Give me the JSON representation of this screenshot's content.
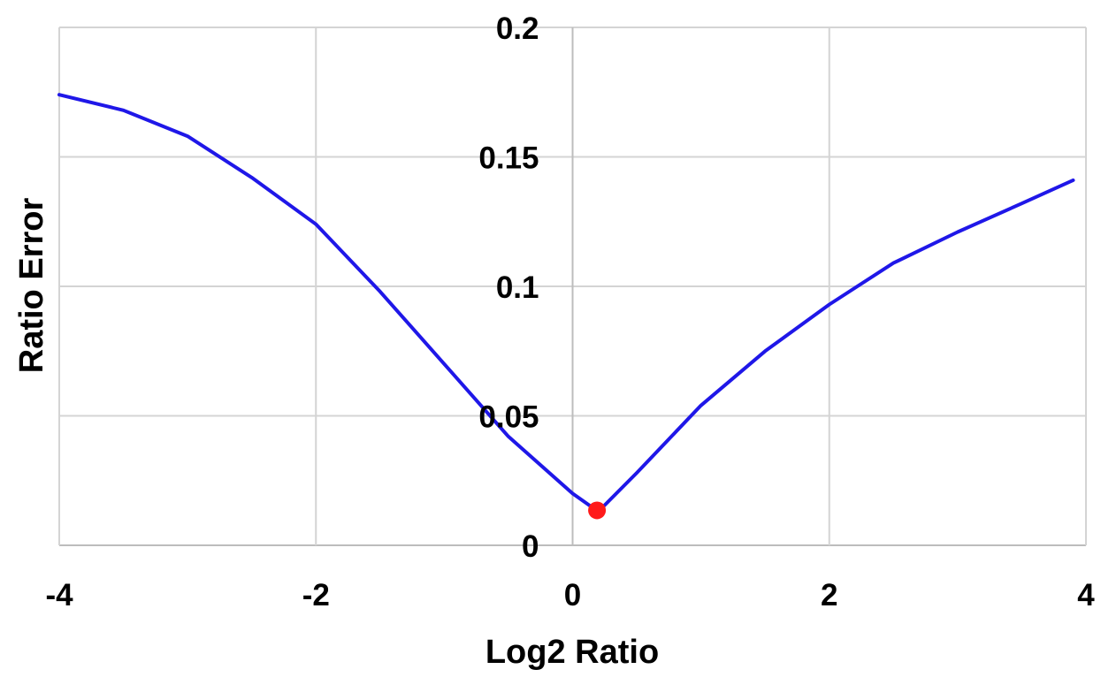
{
  "colors": {
    "line": "#1f17e8",
    "marker": "#ff1a1a",
    "grid": "#d4d4d4",
    "axis": "#bdbdbd",
    "text": "#000000"
  },
  "chart_data": {
    "type": "line",
    "title": "",
    "xlabel": "Log2 Ratio",
    "ylabel": "Ratio Error",
    "xlim": [
      -4,
      4
    ],
    "ylim": [
      0,
      0.2
    ],
    "x_ticks": [
      -4,
      -2,
      0,
      2,
      4
    ],
    "x_tick_labels": [
      "-4",
      "-2",
      "0",
      "2",
      "4"
    ],
    "y_ticks": [
      0,
      0.05,
      0.1,
      0.15,
      0.2
    ],
    "y_tick_labels": [
      "0",
      "0.05",
      "0.1",
      "0.15",
      "0.2"
    ],
    "grid": true,
    "legend": "none",
    "series": [
      {
        "x": [
          -4.0,
          -3.5,
          -3.0,
          -2.5,
          -2.0,
          -1.5,
          -1.0,
          -0.5,
          0.0,
          0.2,
          0.5,
          1.0,
          1.5,
          2.0,
          2.5,
          3.0,
          3.5,
          3.9
        ],
        "y": [
          0.174,
          0.168,
          0.158,
          0.142,
          0.124,
          0.098,
          0.07,
          0.042,
          0.02,
          0.013,
          0.028,
          0.054,
          0.075,
          0.093,
          0.109,
          0.121,
          0.132,
          0.141
        ]
      }
    ],
    "highlight_point": {
      "x": 0.19,
      "y": 0.0135
    }
  }
}
